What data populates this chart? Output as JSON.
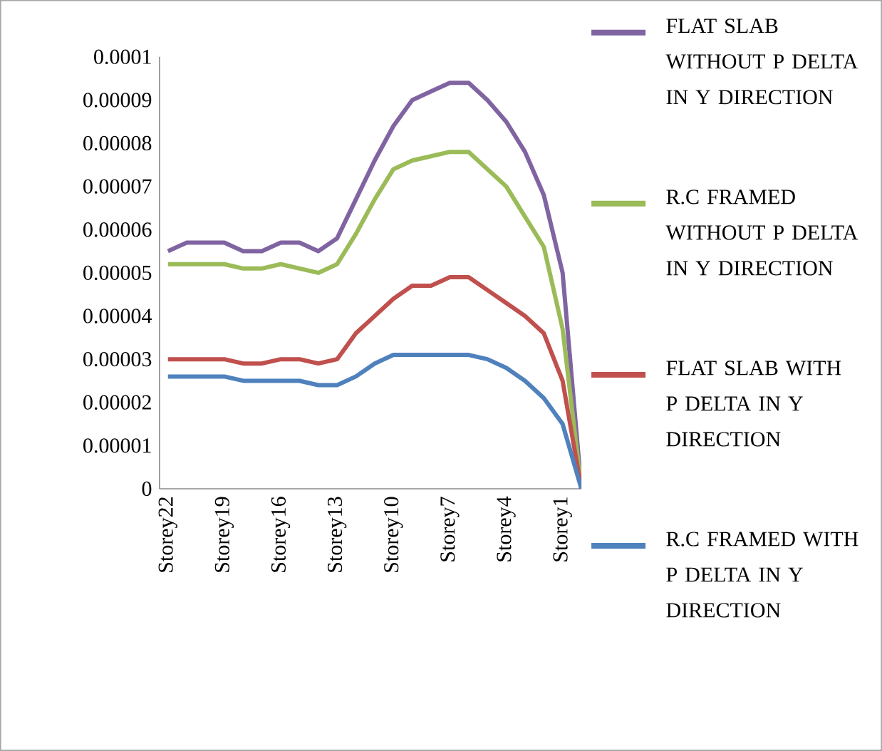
{
  "chart_data": {
    "type": "line",
    "categories": [
      "Storey22",
      null,
      null,
      "Storey19",
      null,
      null,
      "Storey16",
      null,
      null,
      "Storey13",
      null,
      null,
      "Storey10",
      null,
      null,
      "Storey7",
      null,
      null,
      "Storey4",
      null,
      null,
      "Storey1",
      null
    ],
    "series": [
      {
        "name": "FLAT SLAB WITHOUT P DELTA IN Y DIRECTION",
        "color": "#8064a2",
        "values": [
          5.5e-05,
          5.7e-05,
          5.7e-05,
          5.7e-05,
          5.5e-05,
          5.5e-05,
          5.7e-05,
          5.7e-05,
          5.5e-05,
          5.8e-05,
          6.7e-05,
          7.6e-05,
          8.4e-05,
          9e-05,
          9.2e-05,
          9.4e-05,
          9.4e-05,
          9e-05,
          8.5e-05,
          7.8e-05,
          6.8e-05,
          5e-05,
          0
        ]
      },
      {
        "name": "R.C FRAMED WITHOUT P DELTA IN Y DIRECTION",
        "color": "#9bbb59",
        "values": [
          5.2e-05,
          5.2e-05,
          5.2e-05,
          5.2e-05,
          5.1e-05,
          5.1e-05,
          5.2e-05,
          5.1e-05,
          5e-05,
          5.2e-05,
          5.9e-05,
          6.7e-05,
          7.4e-05,
          7.6e-05,
          7.7e-05,
          7.8e-05,
          7.8e-05,
          7.4e-05,
          7e-05,
          6.3e-05,
          5.6e-05,
          3.7e-05,
          0
        ]
      },
      {
        "name": "FLAT SLAB WITH P DELTA IN Y DIRECTION",
        "color": "#c0504d",
        "values": [
          3e-05,
          3e-05,
          3e-05,
          3e-05,
          2.9e-05,
          2.9e-05,
          3e-05,
          3e-05,
          2.9e-05,
          3e-05,
          3.6e-05,
          4e-05,
          4.4e-05,
          4.7e-05,
          4.7e-05,
          4.9e-05,
          4.9e-05,
          4.6e-05,
          4.3e-05,
          4e-05,
          3.6e-05,
          2.5e-05,
          0
        ]
      },
      {
        "name": "R.C FRAMED WITH P DELTA IN Y DIRECTION",
        "color": "#4f81bd",
        "values": [
          2.6e-05,
          2.6e-05,
          2.6e-05,
          2.6e-05,
          2.5e-05,
          2.5e-05,
          2.5e-05,
          2.5e-05,
          2.4e-05,
          2.4e-05,
          2.6e-05,
          2.9e-05,
          3.1e-05,
          3.1e-05,
          3.1e-05,
          3.1e-05,
          3.1e-05,
          3e-05,
          2.8e-05,
          2.5e-05,
          2.1e-05,
          1.5e-05,
          0
        ]
      }
    ],
    "ylim": [
      0,
      0.0001
    ],
    "yticks": [
      0,
      {
        "value": 1e-05,
        "label": "0.00001"
      },
      {
        "value": 2e-05,
        "label": "0.00002"
      },
      {
        "value": 3e-05,
        "label": "0.00003"
      },
      {
        "value": 4e-05,
        "label": "0.00004"
      },
      {
        "value": 5e-05,
        "label": "0.00005"
      },
      {
        "value": 6e-05,
        "label": "0.00006"
      },
      {
        "value": 7e-05,
        "label": "0.00007"
      },
      {
        "value": 8e-05,
        "label": "0.00008"
      },
      {
        "value": 9e-05,
        "label": "0.00009"
      },
      {
        "value": 0.0001,
        "label": "0.0001"
      }
    ],
    "grid": false,
    "legend": "right",
    "marker": "none"
  }
}
